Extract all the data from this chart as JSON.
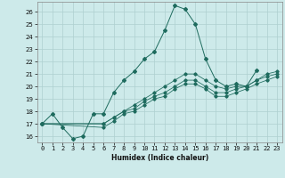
{
  "xlabel": "Humidex (Indice chaleur)",
  "bg_color": "#cdeaea",
  "grid_color": "#aed0d0",
  "line_color": "#1e6b5e",
  "xlim": [
    -0.5,
    23.5
  ],
  "ylim": [
    15.5,
    26.8
  ],
  "xticks": [
    0,
    1,
    2,
    3,
    4,
    5,
    6,
    7,
    8,
    9,
    10,
    11,
    12,
    13,
    14,
    15,
    16,
    17,
    18,
    19,
    20,
    21,
    22,
    23
  ],
  "yticks": [
    16,
    17,
    18,
    19,
    20,
    21,
    22,
    23,
    24,
    25,
    26
  ],
  "series0_x": [
    0,
    1,
    2,
    3,
    4,
    5,
    6,
    7,
    8,
    9,
    10,
    11,
    12,
    13,
    14,
    15,
    16,
    17,
    18,
    19,
    20,
    21
  ],
  "series0_y": [
    17.0,
    17.8,
    16.7,
    15.8,
    16.0,
    17.8,
    17.8,
    19.5,
    20.5,
    21.2,
    22.2,
    22.8,
    24.5,
    26.5,
    26.2,
    25.0,
    22.2,
    20.5,
    20.0,
    20.2,
    20.0,
    21.3
  ],
  "series1_x": [
    0,
    6,
    7,
    8,
    9,
    10,
    11,
    12,
    13,
    14,
    15,
    16,
    17,
    18,
    19,
    20,
    21,
    22,
    23
  ],
  "series1_y": [
    17.0,
    17.0,
    17.5,
    18.0,
    18.5,
    19.0,
    19.5,
    20.0,
    20.5,
    21.0,
    21.0,
    20.5,
    20.0,
    19.8,
    20.0,
    20.0,
    20.5,
    21.0,
    21.2
  ],
  "series2_x": [
    0,
    6,
    7,
    8,
    9,
    10,
    11,
    12,
    13,
    14,
    15,
    16,
    17,
    18,
    19,
    20,
    21,
    22,
    23
  ],
  "series2_y": [
    17.0,
    17.0,
    17.5,
    18.0,
    18.2,
    18.8,
    19.2,
    19.5,
    20.0,
    20.5,
    20.5,
    20.0,
    19.5,
    19.5,
    19.8,
    20.0,
    20.5,
    20.8,
    21.0
  ],
  "series3_x": [
    0,
    6,
    7,
    8,
    9,
    10,
    11,
    12,
    13,
    14,
    15,
    16,
    17,
    18,
    19,
    20,
    21,
    22,
    23
  ],
  "series3_y": [
    17.0,
    16.7,
    17.2,
    17.8,
    18.0,
    18.5,
    19.0,
    19.2,
    19.8,
    20.2,
    20.2,
    19.8,
    19.2,
    19.2,
    19.5,
    19.8,
    20.2,
    20.5,
    20.8
  ],
  "xlabel_fontsize": 5.5,
  "tick_fontsize": 5.0,
  "marker": "D",
  "markersize": 2.0,
  "linewidth": 0.7
}
